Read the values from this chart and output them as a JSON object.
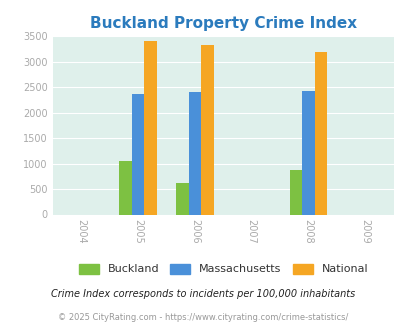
{
  "title": "Buckland Property Crime Index",
  "title_color": "#2B7BBD",
  "years": [
    2004,
    2005,
    2006,
    2007,
    2008,
    2009
  ],
  "bar_groups": {
    "2005": {
      "Buckland": 1060,
      "Massachusetts": 2370,
      "National": 3410
    },
    "2006": {
      "Buckland": 610,
      "Massachusetts": 2400,
      "National": 3330
    },
    "2008": {
      "Buckland": 870,
      "Massachusetts": 2430,
      "National": 3200
    }
  },
  "colors": {
    "Buckland": "#7DC142",
    "Massachusetts": "#4A90D9",
    "National": "#F5A623"
  },
  "xlim": [
    2003.5,
    2009.5
  ],
  "ylim": [
    0,
    3500
  ],
  "yticks": [
    0,
    500,
    1000,
    1500,
    2000,
    2500,
    3000,
    3500
  ],
  "xticks": [
    2004,
    2005,
    2006,
    2007,
    2008,
    2009
  ],
  "bar_width": 0.22,
  "fig_bg_color": "#ffffff",
  "plot_area_color": "#DFF0EB",
  "legend_labels": [
    "Buckland",
    "Massachusetts",
    "National"
  ],
  "footnote1": "Crime Index corresponds to incidents per 100,000 inhabitants",
  "footnote2": "© 2025 CityRating.com - https://www.cityrating.com/crime-statistics/",
  "footnote1_color": "#222222",
  "footnote2_color": "#999999",
  "tick_color": "#aaaaaa",
  "grid_color": "#ffffff"
}
